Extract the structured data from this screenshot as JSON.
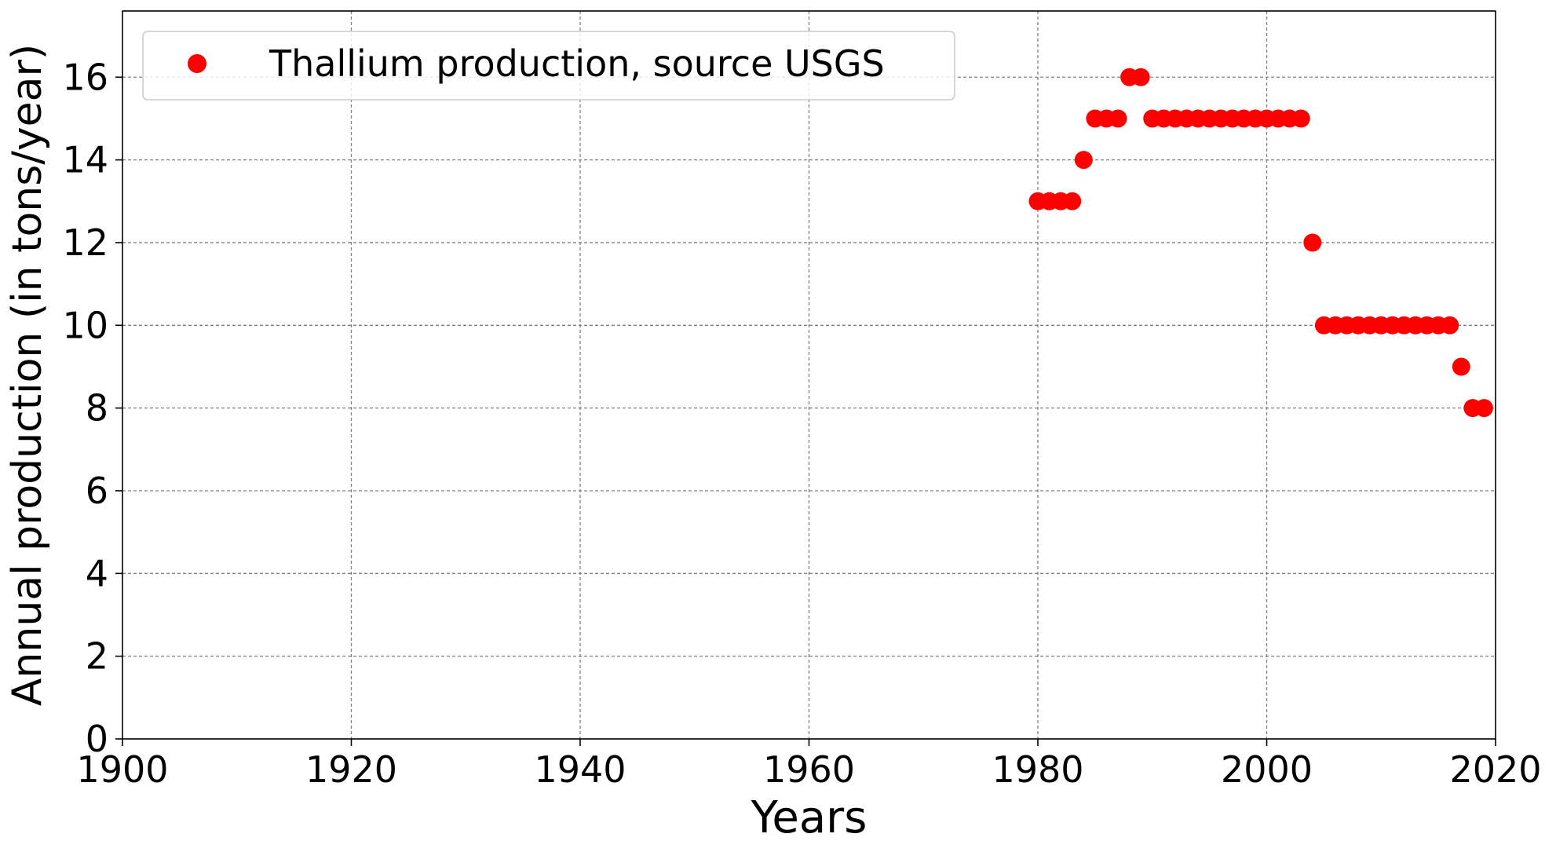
{
  "chart_data": {
    "type": "scatter",
    "title": "",
    "xlabel": "Years",
    "ylabel": "Annual production (in tons/year)",
    "xlim": [
      1900,
      2020
    ],
    "ylim": [
      0,
      17.6
    ],
    "xticks": [
      1900,
      1920,
      1940,
      1960,
      1980,
      2000,
      2020
    ],
    "yticks": [
      0,
      2,
      4,
      6,
      8,
      10,
      12,
      14,
      16
    ],
    "grid": true,
    "legend": {
      "position": "top-left"
    },
    "series": [
      {
        "name": "Thallium production, source USGS",
        "color": "#ff0000",
        "marker": "circle",
        "x": [
          1980,
          1981,
          1982,
          1983,
          1984,
          1985,
          1986,
          1987,
          1988,
          1989,
          1990,
          1991,
          1992,
          1993,
          1994,
          1995,
          1996,
          1997,
          1998,
          1999,
          2000,
          2001,
          2002,
          2003,
          2004,
          2005,
          2006,
          2007,
          2008,
          2009,
          2010,
          2011,
          2012,
          2013,
          2014,
          2015,
          2016,
          2017,
          2018,
          2019
        ],
        "y": [
          13,
          13,
          13,
          13,
          14,
          15,
          15,
          15,
          16,
          16,
          15,
          15,
          15,
          15,
          15,
          15,
          15,
          15,
          15,
          15,
          15,
          15,
          15,
          15,
          12,
          10,
          10,
          10,
          10,
          10,
          10,
          10,
          10,
          10,
          10,
          10,
          10,
          9,
          8,
          8
        ]
      }
    ]
  }
}
